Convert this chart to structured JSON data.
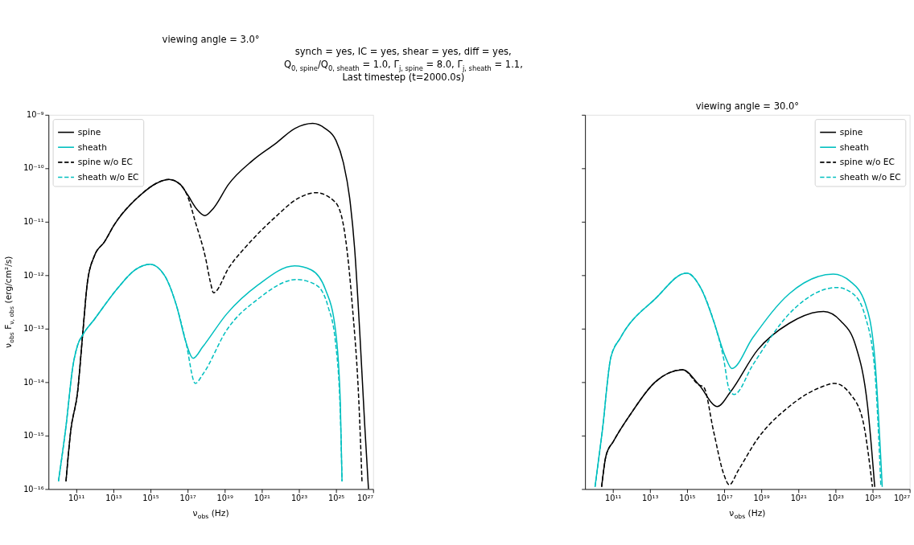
{
  "chart_data": [
    {
      "type": "line",
      "title": "viewing angle = 3.0°",
      "xlabel": "ν$_{obs}$ (Hz)",
      "ylabel": "ν$_{obs}$ F$_{ν, obs}$ (erg/cm²/s)",
      "annotations": [
        "synch = yes, IC = yes, shear = yes, diff = yes,\nQ$_{0, spine}$/Q$_{0, sheath}$ = 1.0, Γ$_{j, spine}$ = 8.0, Γ$_{j, sheath}$ = 1.1,\nLast timestep (t=2000.0s)"
      ],
      "log": "xy",
      "grid": false,
      "legend": "top left",
      "xlim": [
        3200000000.0,
        1e+27
      ],
      "ylim": [
        1e-16,
        1e-09
      ],
      "xticks": [
        {
          "value": 100000000000.0,
          "label": "10¹¹"
        },
        {
          "value": 10000000000000.0,
          "label": "10¹³"
        },
        {
          "value": 1000000000000000.0,
          "label": "10¹⁵"
        },
        {
          "value": 1e+17,
          "label": "10¹⁷"
        },
        {
          "value": 1e+19,
          "label": "10¹⁹"
        },
        {
          "value": 1e+21,
          "label": "10²¹"
        },
        {
          "value": 1e+23,
          "label": "10²³"
        },
        {
          "value": 1e+25,
          "label": "10²⁵"
        },
        {
          "value": 1e+27,
          "label": "10²⁷"
        }
      ],
      "yticks": [
        {
          "value": 1e-16,
          "label": "10⁻¹⁶"
        },
        {
          "value": 1e-15,
          "label": "10⁻¹⁵"
        },
        {
          "value": 1e-14,
          "label": "10⁻¹⁴"
        },
        {
          "value": 1e-13,
          "label": "10⁻¹³"
        },
        {
          "value": 1e-12,
          "label": "10⁻¹²"
        },
        {
          "value": 1e-11,
          "label": "10⁻¹¹"
        },
        {
          "value": 1e-10,
          "label": "10⁻¹⁰"
        },
        {
          "value": 1e-09,
          "label": "10⁻⁹"
        }
      ],
      "series": [
        {
          "name": "spine",
          "color": "#000000",
          "line_style": "solid",
          "x": [
            28000000000.0,
            50000000000.0,
            120000000000.0,
            220000000000.0,
            400000000000.0,
            950000000000.0,
            3300000000000.0,
            11000000000000.0,
            300000000000000.0,
            2000000000000000.0,
            1e+16,
            4e+16,
            1e+17,
            3.2e+17,
            8.5e+17,
            2.5e+18,
            1.6e+19,
            3.2e+20,
            5.5e+21,
            6.3e+22,
            5.5e+23,
            2.5e+24,
            1e+25,
            2.5e+25,
            5.4e+25,
            1e+26,
            1.9e+26,
            3.5e+26,
            5.6e+26
          ],
          "values": [
            1.4e-16,
            1.2e-15,
            6.9e-15,
            7.6e-14,
            7.4e-13,
            2.3e-12,
            4.2e-12,
            8.7e-12,
            3.2e-11,
            5.2e-11,
            6.2e-11,
            5e-11,
            3.2e-11,
            1.7e-11,
            1.3e-11,
            1.8e-11,
            5e-11,
            1.4e-10,
            2.9e-10,
            5.6e-10,
            6.9e-10,
            5.6e-10,
            3.3e-10,
            1.26e-10,
            2.8e-11,
            3.2e-12,
            8.5e-14,
            1.6e-15,
            1e-16
          ]
        },
        {
          "name": "sheath",
          "color": "#00bfbf",
          "line_style": "solid",
          "x": [
            11000000000.0,
            28000000000.0,
            66000000000.0,
            120000000000.0,
            220000000000.0,
            950000000000.0,
            19000000000000.0,
            150000000000000.0,
            950000000000000.0,
            5600000000000000.0,
            2.6e+16,
            8.1e+16,
            2e+17,
            6.6e+17,
            1.3e+19,
            6.3e+20,
            5.8e+22,
            4.6e+23,
            2.7e+24,
            9.3e+24,
            1.7e+25,
            2.1e+25
          ],
          "values": [
            1.4e-16,
            1.5e-15,
            2e-14,
            5e-14,
            7.6e-14,
            1.5e-13,
            6e-13,
            1.26e-12,
            1.6e-12,
            1e-12,
            2.6e-13,
            5.6e-14,
            2.8e-14,
            4.6e-14,
            1.9e-13,
            6.6e-13,
            1.5e-12,
            1.26e-12,
            5.4e-13,
            9.5e-14,
            4.2e-15,
            1.4e-16
          ]
        },
        {
          "name": "spine w/o EC",
          "color": "#000000",
          "line_style": "dashed",
          "x": [
            28000000000.0,
            50000000000.0,
            120000000000.0,
            220000000000.0,
            400000000000.0,
            950000000000.0,
            3300000000000.0,
            11000000000000.0,
            300000000000000.0,
            2000000000000000.0,
            1e+16,
            4e+16,
            1e+17,
            2.6e+17,
            9.3e+17,
            1.7e+18,
            2.5e+18,
            1.7e+19,
            2.7e+20,
            5e+21,
            1e+23,
            8.3e+23,
            9.3e+24,
            3e+25,
            7.6e+25,
            1.7e+26,
            2.5e+26
          ],
          "values": [
            1.4e-16,
            1.2e-15,
            6.9e-15,
            7.6e-14,
            7.4e-13,
            2.3e-12,
            4.2e-12,
            8.7e-12,
            3.2e-11,
            5.2e-11,
            6.2e-11,
            5e-11,
            3e-11,
            1e-11,
            2.1e-12,
            7.4e-13,
            4.7e-13,
            1.4e-12,
            4.4e-12,
            1.2e-11,
            2.8e-11,
            3.5e-11,
            2.3e-11,
            5.9e-12,
            2.6e-13,
            4.2e-15,
            1.4e-16
          ]
        },
        {
          "name": "sheath w/o EC",
          "color": "#00bfbf",
          "line_style": "dashed",
          "x": [
            11000000000.0,
            28000000000.0,
            66000000000.0,
            120000000000.0,
            220000000000.0,
            950000000000.0,
            19000000000000.0,
            150000000000000.0,
            950000000000000.0,
            5600000000000000.0,
            2.6e+16,
            8.1e+16,
            2.6e+17,
            6.6e+17,
            1.3e+19,
            6.3e+20,
            7.4e+22,
            8.3e+23,
            3.7e+24,
            9.3e+24,
            1.7e+25,
            2.1e+25
          ],
          "values": [
            1.4e-16,
            1.5e-15,
            2e-14,
            5e-14,
            7.6e-14,
            1.5e-13,
            6e-13,
            1.26e-12,
            1.6e-12,
            1e-12,
            2.6e-13,
            5.6e-14,
            9.5e-15,
            1.4e-14,
            9.5e-14,
            3.6e-13,
            8.3e-13,
            6.6e-13,
            2.6e-13,
            5.6e-14,
            2.5e-15,
            1.4e-16
          ]
        }
      ]
    },
    {
      "type": "line",
      "title": "viewing angle = 30.0°",
      "xlabel": "ν$_{obs}$ (Hz)",
      "log": "xy",
      "grid": false,
      "legend": "top right",
      "tick_labels": "x",
      "xlim": [
        3200000000.0,
        1e+27
      ],
      "ylim": [
        1e-16,
        1e-09
      ],
      "xticks": [
        {
          "value": 100000000000.0,
          "label": "10¹¹"
        },
        {
          "value": 10000000000000.0,
          "label": "10¹³"
        },
        {
          "value": 1000000000000000.0,
          "label": "10¹⁵"
        },
        {
          "value": 1e+17,
          "label": "10¹⁷"
        },
        {
          "value": 1e+19,
          "label": "10¹⁹"
        },
        {
          "value": 1e+21,
          "label": "10²¹"
        },
        {
          "value": 1e+23,
          "label": "10²³"
        },
        {
          "value": 1e+25,
          "label": "10²⁵"
        },
        {
          "value": 1e+27,
          "label": "10²⁷"
        }
      ],
      "yticks": [
        {
          "value": 1e-16,
          "label": null
        },
        {
          "value": 1e-15,
          "label": null
        },
        {
          "value": 1e-14,
          "label": null
        },
        {
          "value": 1e-13,
          "label": null
        },
        {
          "value": 1e-12,
          "label": null
        },
        {
          "value": 1e-11,
          "label": null
        },
        {
          "value": 1e-10,
          "label": null
        },
        {
          "value": 1e-09,
          "label": null
        }
      ],
      "series": [
        {
          "name": "spine",
          "color": "#000000",
          "line_style": "solid",
          "x": [
            25000000000.0,
            43000000000.0,
            110000000000.0,
            890000000000.0,
            19000000000000.0,
            590000000000000.0,
            4400000000000000.0,
            4.3e+16,
            2.2e+17,
            6.3e+18,
            3.2e+20,
            2.3e+22,
            1.9e+23,
            1.2e+24,
            5.4e+24,
            1.3e+25
          ],
          "values": [
            1.1e-16,
            4.2e-16,
            7.9e-16,
            2.5e-15,
            1e-14,
            1.7e-14,
            8.9e-15,
            3.5e-15,
            6.6e-15,
            4e-14,
            1.26e-13,
            2.1e-13,
            1.4e-13,
            4.9e-14,
            3.5e-15,
            1.1e-16
          ]
        },
        {
          "name": "sheath",
          "color": "#00bfbf",
          "line_style": "solid",
          "x": [
            11000000000.0,
            27000000000.0,
            78000000000.0,
            260000000000.0,
            19000000000000.0,
            950000000000000.0,
            5900000000000000.0,
            2.7e+16,
            1.2e+17,
            2.6e+17,
            3.5e+18,
            3.2e+20,
            7.6e+22,
            6.5e+23,
            4e+24,
            1.3e+25,
            3.3e+25
          ],
          "values": [
            1.1e-16,
            1.2e-15,
            2.9e-14,
            6.8e-14,
            3.6e-13,
            1.1e-12,
            5.5e-13,
            1.4e-13,
            2.9e-14,
            1.8e-14,
            6.8e-14,
            4.5e-13,
            1.05e-12,
            7.6e-13,
            3e-13,
            2.9e-14,
            1.1e-16
          ]
        },
        {
          "name": "spine w/o EC",
          "color": "#000000",
          "line_style": "dashed",
          "x": [
            25000000000.0,
            43000000000.0,
            110000000000.0,
            890000000000.0,
            19000000000000.0,
            590000000000000.0,
            4400000000000000.0,
            7900000000000000.0,
            2.7e+16,
            9.1e+16,
            1.9e+17,
            5.6e+17,
            6.3e+18,
            3.2e+20,
            1.7e+22,
            8.9e+22,
            6.5e+23,
            3e+24,
            9.8e+24
          ],
          "values": [
            1.1e-16,
            4.2e-16,
            7.9e-16,
            2.5e-15,
            1e-14,
            1.7e-14,
            8.9e-15,
            8.1e-15,
            1.2e-15,
            2e-16,
            1.2e-16,
            2.2e-16,
            8.7e-16,
            3.5e-15,
            8.1e-15,
            9.5e-15,
            5.9e-15,
            1.9e-15,
            1.1e-16
          ]
        },
        {
          "name": "sheath w/o EC",
          "color": "#00bfbf",
          "line_style": "dashed",
          "x": [
            11000000000.0,
            27000000000.0,
            78000000000.0,
            260000000000.0,
            19000000000000.0,
            950000000000000.0,
            5900000000000000.0,
            2.7e+16,
            9.1e+16,
            1.9e+17,
            3.5e+17,
            3.5e+18,
            3.2e+20,
            1.2e+23,
            8.7e+23,
            4e+24,
            1.3e+25,
            2.8e+25
          ],
          "values": [
            1.1e-16,
            1.2e-15,
            2.9e-14,
            6.8e-14,
            3.6e-13,
            1.1e-12,
            5.5e-13,
            1.4e-13,
            2.9e-14,
            7.2e-15,
            5.9e-15,
            2.1e-14,
            1.9e-13,
            5.9e-13,
            4.5e-13,
            1.7e-13,
            1.7e-14,
            1.1e-16
          ]
        }
      ]
    }
  ]
}
